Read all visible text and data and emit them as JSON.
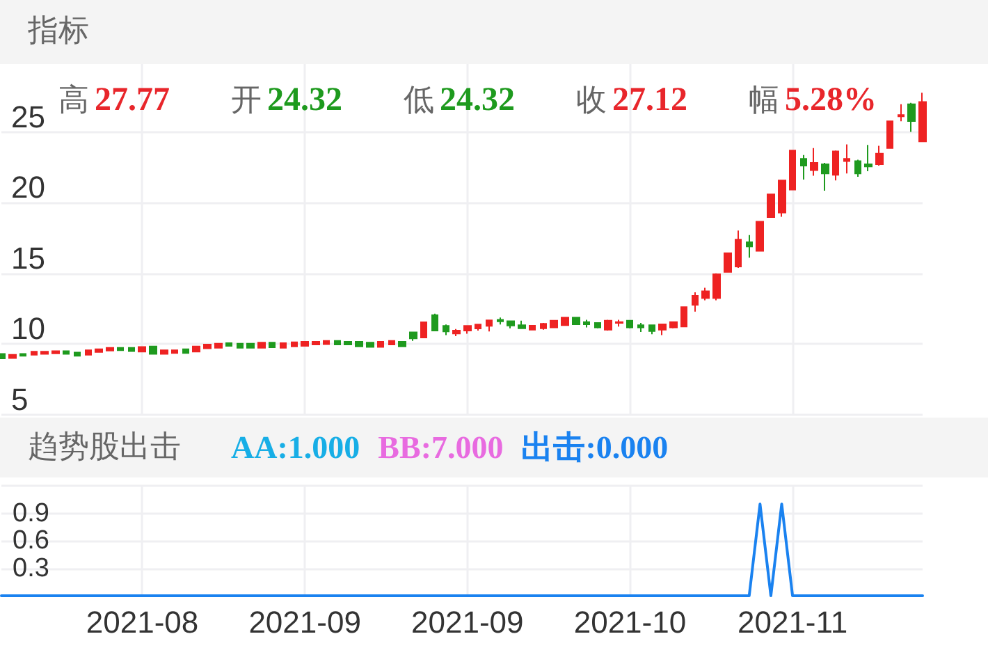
{
  "chart_data": [
    {
      "type": "candlestick",
      "title": "指标",
      "annotations": [
        "高 27.77",
        "开 24.32",
        "低 24.32",
        "收 27.12",
        "幅 5.28%"
      ],
      "categories": [
        null,
        null,
        null,
        null,
        null,
        null,
        null,
        null,
        null,
        null,
        null,
        null,
        null,
        "2021-08",
        null,
        null,
        null,
        null,
        null,
        null,
        null,
        null,
        null,
        null,
        null,
        null,
        null,
        null,
        "2021-09",
        null,
        null,
        null,
        null,
        null,
        null,
        null,
        null,
        null,
        null,
        null,
        null,
        null,
        null,
        "2021-09",
        null,
        null,
        null,
        null,
        null,
        null,
        null,
        null,
        null,
        null,
        null,
        null,
        null,
        null,
        "2021-10",
        null,
        null,
        null,
        null,
        null,
        null,
        null,
        null,
        null,
        null,
        null,
        null,
        null,
        null,
        "2021-11",
        null,
        null,
        null,
        null,
        null,
        null,
        null,
        null,
        null,
        null,
        null,
        null
      ],
      "ohlc": [
        [
          9.31,
          9.33,
          8.95,
          8.98
        ],
        [
          9.01,
          9.24,
          9.01,
          9.24
        ],
        [
          9.31,
          9.31,
          9.17,
          9.17
        ],
        [
          9.24,
          9.47,
          9.24,
          9.47
        ],
        [
          9.31,
          9.47,
          9.31,
          9.47
        ],
        [
          9.34,
          9.5,
          9.34,
          9.5
        ],
        [
          9.5,
          9.5,
          9.31,
          9.31
        ],
        [
          9.41,
          9.41,
          9.17,
          9.17
        ],
        [
          9.24,
          9.57,
          9.24,
          9.57
        ],
        [
          9.44,
          9.64,
          9.44,
          9.64
        ],
        [
          9.54,
          9.74,
          9.54,
          9.74
        ],
        [
          9.74,
          9.74,
          9.57,
          9.57
        ],
        [
          9.74,
          9.74,
          9.5,
          9.5
        ],
        [
          9.47,
          9.8,
          9.47,
          9.8
        ],
        [
          9.84,
          9.84,
          9.31,
          9.31
        ],
        [
          9.31,
          9.57,
          9.31,
          9.57
        ],
        [
          9.37,
          9.57,
          9.37,
          9.57
        ],
        [
          9.64,
          9.64,
          9.37,
          9.37
        ],
        [
          9.47,
          9.84,
          9.47,
          9.84
        ],
        [
          9.7,
          9.97,
          9.7,
          9.97
        ],
        [
          9.74,
          10.03,
          9.74,
          10.03
        ],
        [
          10.07,
          10.07,
          9.87,
          9.87
        ],
        [
          10.03,
          10.03,
          9.74,
          9.74
        ],
        [
          10.03,
          10.03,
          9.74,
          9.74
        ],
        [
          9.74,
          10.1,
          9.74,
          10.1
        ],
        [
          10.1,
          10.1,
          9.77,
          9.77
        ],
        [
          9.74,
          10.07,
          9.74,
          10.07
        ],
        [
          9.84,
          10.13,
          9.84,
          10.13
        ],
        [
          9.87,
          10.17,
          9.87,
          10.17
        ],
        [
          9.97,
          10.17,
          9.97,
          10.17
        ],
        [
          10.0,
          10.23,
          10.0,
          10.23
        ],
        [
          10.23,
          10.23,
          9.97,
          9.97
        ],
        [
          10.17,
          10.17,
          9.97,
          9.97
        ],
        [
          10.17,
          10.17,
          9.84,
          9.84
        ],
        [
          10.1,
          10.1,
          9.8,
          9.8
        ],
        [
          9.8,
          10.17,
          9.8,
          10.17
        ],
        [
          9.97,
          10.23,
          9.97,
          10.23
        ],
        [
          10.17,
          10.17,
          9.84,
          9.84
        ],
        [
          10.83,
          10.83,
          10.23,
          10.4
        ],
        [
          10.46,
          11.55,
          10.46,
          11.55
        ],
        [
          12.05,
          12.15,
          10.9,
          10.96
        ],
        [
          11.29,
          11.39,
          10.63,
          10.89
        ],
        [
          10.75,
          11.06,
          10.56,
          10.96
        ],
        [
          10.96,
          11.29,
          10.73,
          11.29
        ],
        [
          11.1,
          11.39,
          10.96,
          11.39
        ],
        [
          11.29,
          11.68,
          10.89,
          11.68
        ],
        [
          11.72,
          11.88,
          11.39,
          11.6
        ],
        [
          11.62,
          11.66,
          11.11,
          11.31
        ],
        [
          11.34,
          11.66,
          11.11,
          11.11
        ],
        [
          11.02,
          11.3,
          11.02,
          11.3
        ],
        [
          11.11,
          11.5,
          11.02,
          11.43
        ],
        [
          11.18,
          11.66,
          11.18,
          11.66
        ],
        [
          11.34,
          11.88,
          11.34,
          11.88
        ],
        [
          11.88,
          11.88,
          11.4,
          11.4
        ],
        [
          11.56,
          11.72,
          11.18,
          11.4
        ],
        [
          11.5,
          11.5,
          11.11,
          11.18
        ],
        [
          11.02,
          11.72,
          10.96,
          11.66
        ],
        [
          11.5,
          11.72,
          11.24,
          11.56
        ],
        [
          11.66,
          11.66,
          11.11,
          11.18
        ],
        [
          11.34,
          11.5,
          10.86,
          11.18
        ],
        [
          11.34,
          11.34,
          10.7,
          10.92
        ],
        [
          11.02,
          11.4,
          10.64,
          11.4
        ],
        [
          11.18,
          11.56,
          11.11,
          11.56
        ],
        [
          11.24,
          12.61,
          11.24,
          12.61
        ],
        [
          12.77,
          13.66,
          12.29,
          13.41
        ],
        [
          13.25,
          13.98,
          13.09,
          13.73
        ],
        [
          13.25,
          15.0,
          13.09,
          14.94
        ],
        [
          15.1,
          16.43,
          15.1,
          16.43
        ],
        [
          15.48,
          18.03,
          15.38,
          17.39
        ],
        [
          17.2,
          17.71,
          16.11,
          16.9
        ],
        [
          16.59,
          18.66,
          16.59,
          18.66
        ],
        [
          18.98,
          20.59,
          18.98,
          20.59
        ],
        [
          19.3,
          21.57,
          19.0,
          21.57
        ],
        [
          20.92,
          23.69,
          20.92,
          23.69
        ],
        [
          23.1,
          23.37,
          21.63,
          22.61
        ],
        [
          22.29,
          23.86,
          21.9,
          22.81
        ],
        [
          22.71,
          22.81,
          20.85,
          22.06
        ],
        [
          21.96,
          23.69,
          21.57,
          23.63
        ],
        [
          22.94,
          24.12,
          22.06,
          23.1
        ],
        [
          22.94,
          23.04,
          21.83,
          22.06
        ],
        [
          22.71,
          24.08,
          22.22,
          22.55
        ],
        [
          22.71,
          24.02,
          22.61,
          23.46
        ],
        [
          23.86,
          25.75,
          23.86,
          25.75
        ],
        [
          26.1,
          26.96,
          25.75,
          26.2
        ],
        [
          26.96,
          27.06,
          25.0,
          25.76
        ],
        [
          24.32,
          27.77,
          24.32,
          27.12
        ]
      ],
      "colors": [
        "#1e9a1e",
        "#ee2222",
        "#1e9a1e",
        "#ee2222",
        "#ee2222",
        "#ee2222",
        "#1e9a1e",
        "#1e9a1e",
        "#ee2222",
        "#ee2222",
        "#ee2222",
        "#1e9a1e",
        "#1e9a1e",
        "#ee2222",
        "#1e9a1e",
        "#ee2222",
        "#ee2222",
        "#1e9a1e",
        "#ee2222",
        "#ee2222",
        "#ee2222",
        "#1e9a1e",
        "#1e9a1e",
        "#1e9a1e",
        "#ee2222",
        "#1e9a1e",
        "#ee2222",
        "#ee2222",
        "#ee2222",
        "#ee2222",
        "#ee2222",
        "#1e9a1e",
        "#1e9a1e",
        "#1e9a1e",
        "#1e9a1e",
        "#ee2222",
        "#ee2222",
        "#1e9a1e",
        "#1e9a1e",
        "#ee2222",
        "#1e9a1e",
        "#1e9a1e",
        "#ee2222",
        "#ee2222",
        "#ee2222",
        "#ee2222",
        "#1e9a1e",
        "#1e9a1e",
        "#1e9a1e",
        "#ee2222",
        "#ee2222",
        "#ee2222",
        "#ee2222",
        "#1e9a1e",
        "#1e9a1e",
        "#1e9a1e",
        "#ee2222",
        "#ee2222",
        "#1e9a1e",
        "#1e9a1e",
        "#1e9a1e",
        "#ee2222",
        "#ee2222",
        "#ee2222",
        "#ee2222",
        "#ee2222",
        "#ee2222",
        "#ee2222",
        "#ee2222",
        "#1e9a1e",
        "#ee2222",
        "#ee2222",
        "#ee2222",
        "#ee2222",
        "#1e9a1e",
        "#ee2222",
        "#1e9a1e",
        "#ee2222",
        "#ee2222",
        "#1e9a1e",
        "#1e9a1e",
        "#ee2222",
        "#ee2222",
        "#ee2222",
        "#1e9a1e",
        "#ee2222"
      ],
      "ylim": [
        5,
        29.8
      ],
      "yticks": [
        5,
        10,
        15,
        20,
        25
      ],
      "grid": true,
      "tick_labels": "y"
    },
    {
      "type": "line",
      "title": "趋势股出击",
      "annotations": [
        "AA:1.000",
        "BB:7.000",
        "出击:0.000"
      ],
      "categories": [
        null,
        null,
        null,
        null,
        null,
        null,
        null,
        null,
        null,
        null,
        null,
        null,
        null,
        "2021-08",
        null,
        null,
        null,
        null,
        null,
        null,
        null,
        null,
        null,
        null,
        null,
        null,
        null,
        null,
        "2021-09",
        null,
        null,
        null,
        null,
        null,
        null,
        null,
        null,
        null,
        null,
        null,
        null,
        null,
        null,
        "2021-09",
        null,
        null,
        null,
        null,
        null,
        null,
        null,
        null,
        null,
        null,
        null,
        null,
        null,
        null,
        "2021-10",
        null,
        null,
        null,
        null,
        null,
        null,
        null,
        null,
        null,
        null,
        null,
        null,
        null,
        null,
        "2021-11",
        null,
        null,
        null,
        null,
        null,
        null,
        null,
        null,
        null,
        null,
        null,
        null
      ],
      "series": [
        {
          "color": "#1a82f0",
          "values": [
            0,
            0,
            0,
            0,
            0,
            0,
            0,
            0,
            0,
            0,
            0,
            0,
            0,
            0,
            0,
            0,
            0,
            0,
            0,
            0,
            0,
            0,
            0,
            0,
            0,
            0,
            0,
            0,
            0,
            0,
            0,
            0,
            0,
            0,
            0,
            0,
            0,
            0,
            0,
            0,
            0,
            0,
            0,
            0,
            0,
            0,
            0,
            0,
            0,
            0,
            0,
            0,
            0,
            0,
            0,
            0,
            0,
            0,
            0,
            0,
            0,
            0,
            0,
            0,
            0,
            0,
            0,
            0,
            0,
            0,
            1,
            0,
            1,
            0,
            0,
            0,
            0,
            0,
            0,
            0,
            0,
            0,
            0,
            0,
            0,
            0
          ]
        }
      ],
      "ylim": [
        0,
        1.2
      ],
      "yticks": [
        0.3,
        0.6,
        0.9,
        {
          "value": 1.2,
          "label": null
        }
      ],
      "grid": true,
      "marker": "none"
    }
  ]
}
